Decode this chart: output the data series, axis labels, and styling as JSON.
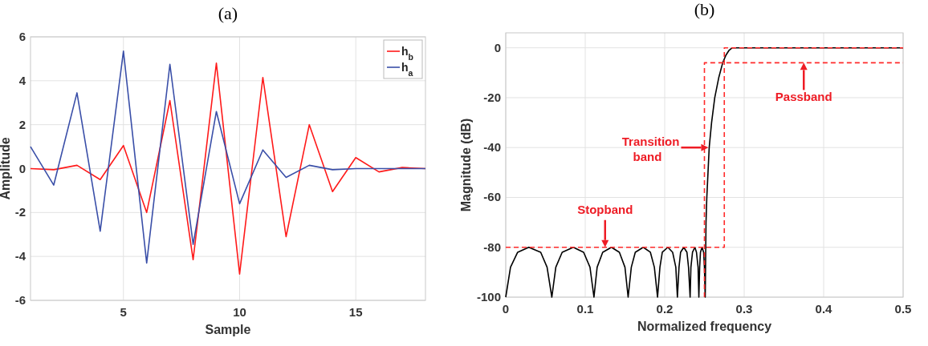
{
  "chart_data": [
    {
      "type": "line",
      "title": "(a)",
      "xlabel": "Sample",
      "ylabel": "Amplitude",
      "x": [
        1,
        2,
        3,
        4,
        5,
        6,
        7,
        8,
        9,
        10,
        11,
        12,
        13,
        14,
        15,
        16,
        17,
        18
      ],
      "xlim": [
        1,
        18
      ],
      "xticks": [
        5,
        10,
        15
      ],
      "ylim": [
        -6,
        6
      ],
      "yticks": [
        -6,
        -4,
        -2,
        0,
        2,
        4,
        6
      ],
      "grid": true,
      "legend": "top right",
      "series": [
        {
          "name": "h$_{b}$",
          "color": "#ff1a1a",
          "values": [
            0,
            -0.05,
            0.15,
            -0.5,
            1.05,
            -2,
            3.1,
            -4.15,
            4.8,
            -4.8,
            4.15,
            -3.1,
            2,
            -1.05,
            0.5,
            -0.15,
            0.05,
            0
          ]
        },
        {
          "name": "h$_{a}$",
          "color": "#3a4fa8",
          "values": [
            1,
            -0.75,
            3.45,
            -2.85,
            5.35,
            -4.3,
            4.75,
            -3.45,
            2.6,
            -1.6,
            0.85,
            -0.4,
            0.15,
            -0.05,
            0,
            0,
            0,
            0
          ]
        }
      ]
    },
    {
      "type": "line",
      "title": "(b)",
      "xlabel": "Normalized frequency",
      "ylabel": "Magnitude (dB)",
      "xlim": [
        0,
        0.5
      ],
      "xticks": [
        0,
        0.1,
        0.2,
        0.3,
        0.4,
        0.5
      ],
      "ylim": [
        -100,
        6
      ],
      "yticks": [
        -100,
        -80,
        -60,
        -40,
        -20,
        0
      ],
      "grid": true,
      "legend": false,
      "series": [
        {
          "color": "#000000",
          "line_style": "solid",
          "x": [
            0,
            0.006,
            0.015,
            0.029,
            0.044,
            0.052,
            0.058,
            0.063,
            0.071,
            0.085,
            0.098,
            0.106,
            0.111,
            0.115,
            0.122,
            0.133,
            0.143,
            0.15,
            0.154,
            0.158,
            0.163,
            0.173,
            0.182,
            0.187,
            0.191,
            0.194,
            0.197,
            0.204,
            0.21,
            0.214,
            0.216,
            0.218,
            0.22,
            0.224,
            0.228,
            0.23,
            0.232,
            0.233,
            0.235,
            0.238,
            0.24,
            0.242,
            0.243,
            0.244,
            0.245,
            0.247,
            0.249,
            0.25,
            0.251,
            0.252,
            0.253,
            0.2545,
            0.256,
            0.259,
            0.263,
            0.268,
            0.273,
            0.277,
            0.281,
            0.285,
            0.5
          ],
          "values": [
            -100,
            -88,
            -82,
            -80,
            -82,
            -88,
            -100,
            -88,
            -82,
            -80,
            -82,
            -88,
            -100,
            -88,
            -82,
            -80,
            -82,
            -88,
            -100,
            -88,
            -82,
            -80,
            -82,
            -88,
            -100,
            -88,
            -82,
            -80,
            -82,
            -88,
            -100,
            -88,
            -82,
            -80,
            -82,
            -88,
            -100,
            -88,
            -82,
            -80,
            -82,
            -88,
            -100,
            -88,
            -82,
            -80,
            -82,
            -88,
            -100,
            -70,
            -60,
            -50,
            -40,
            -30,
            -20,
            -12,
            -6,
            -3,
            -1,
            0,
            0
          ]
        },
        {
          "color": "#ff2a2a",
          "line_style": "dashed",
          "x": [
            0,
            0.275,
            0.275,
            0.5
          ],
          "values": [
            -80,
            -80,
            0,
            0
          ]
        },
        {
          "color": "#ff2a2a",
          "line_style": "dashed",
          "x": [
            0.25,
            0.25,
            0.5
          ],
          "values": [
            -100,
            -6,
            -6
          ]
        }
      ],
      "annotations": [
        {
          "text": "Transition band",
          "x": 0.255,
          "y": -40
        },
        {
          "text": "Stopband",
          "x": 0.125,
          "y": -80
        },
        {
          "text": "Passband",
          "x": 0.375,
          "y": -6
        }
      ]
    }
  ]
}
